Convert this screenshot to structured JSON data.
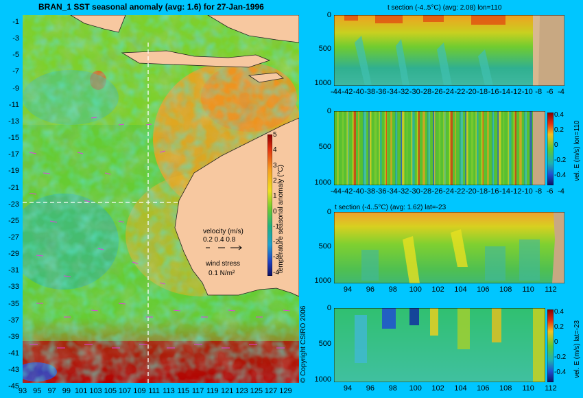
{
  "map": {
    "title": "BRAN_1  SST seasonal anomaly (avg: 1.6) for 27-Jan-1996",
    "lat_ticks": [
      "-1",
      "-3",
      "-5",
      "-7",
      "-9",
      "-11",
      "-13",
      "-15",
      "-17",
      "-19",
      "-21",
      "-23",
      "-25",
      "-27",
      "-29",
      "-31",
      "-33",
      "-35",
      "-37",
      "-39",
      "-41",
      "-43",
      "-45"
    ],
    "lon_ticks": [
      "93",
      "95",
      "97",
      "99",
      "101",
      "103",
      "105",
      "107",
      "109",
      "111",
      "113",
      "115",
      "117",
      "119",
      "121",
      "123",
      "125",
      "127",
      "129"
    ],
    "colorbar": {
      "label": "temperature seasonal anomaly (°C)",
      "ticks": [
        "5",
        "4",
        "3",
        "2",
        "1",
        "0",
        "-1",
        "-2",
        "-3",
        "-4"
      ]
    },
    "velocity_legend": {
      "title": "velocity (m/s)",
      "values": "0.2 0.4 0.8"
    },
    "wind_legend": {
      "title": "wind stress",
      "value": "0.1 N/m²"
    },
    "copyright": "© Copyright CSIRO 2006"
  },
  "panels": [
    {
      "title": "t section (-4..5°C) (avg: 2.08) lon=110",
      "y_ticks": [
        "0",
        "500",
        "1000"
      ],
      "x_ticks": [
        "-44",
        "-42",
        "-40",
        "-38",
        "-36",
        "-34",
        "-32",
        "-30",
        "-28",
        "-26",
        "-24",
        "-22",
        "-20",
        "-18",
        "-16",
        "-14",
        "-12",
        "-10",
        "-8",
        "-6",
        "-4"
      ]
    },
    {
      "title": "",
      "y_ticks": [
        "0",
        "500",
        "1000"
      ],
      "x_ticks": [
        "-44",
        "-42",
        "-40",
        "-38",
        "-36",
        "-34",
        "-32",
        "-30",
        "-28",
        "-26",
        "-24",
        "-22",
        "-20",
        "-18",
        "-16",
        "-14",
        "-12",
        "-10",
        "-8",
        "-6",
        "-4"
      ],
      "colorbar": {
        "label": "vel. E (m/s) lon=110",
        "ticks": [
          "0.4",
          "0.2",
          "0",
          "-0.2",
          "-0.4"
        ]
      }
    },
    {
      "title": "t section (-4..5°C) (avg: 1.62) lat=-23",
      "y_ticks": [
        "0",
        "500",
        "1000"
      ],
      "x_ticks": [
        "94",
        "96",
        "98",
        "100",
        "102",
        "104",
        "106",
        "108",
        "110",
        "112"
      ]
    },
    {
      "title": "",
      "y_ticks": [
        "0",
        "500",
        "1000"
      ],
      "x_ticks": [
        "94",
        "96",
        "98",
        "100",
        "102",
        "104",
        "106",
        "108",
        "110",
        "112"
      ],
      "colorbar": {
        "label": "vel. E (m/s) lat=-23",
        "ticks": [
          "0.4",
          "0.2",
          "0",
          "-0.2",
          "-0.4"
        ]
      }
    }
  ]
}
